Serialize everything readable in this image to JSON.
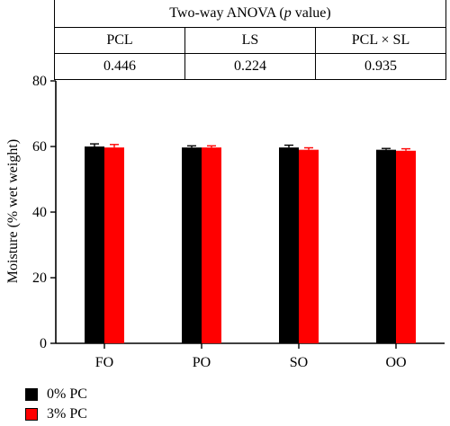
{
  "stats_table": {
    "title_prefix": "Two-way ANOVA (",
    "title_italic": "p",
    "title_suffix": " value)",
    "headers": [
      "PCL",
      "LS",
      "PCL × SL"
    ],
    "values": [
      "0.446",
      "0.224",
      "0.935"
    ]
  },
  "chart_data": {
    "type": "bar",
    "categories": [
      "FO",
      "PO",
      "SO",
      "OO"
    ],
    "ylabel": "Moisture (% wet weight)",
    "ylim": [
      0,
      80
    ],
    "yticks": [
      0,
      20,
      40,
      60,
      80
    ],
    "series": [
      {
        "name": "0% PC",
        "color": "#000000",
        "values": [
          60.0,
          59.7,
          59.7,
          59.0
        ],
        "errors": [
          0.8,
          0.5,
          0.7,
          0.4
        ]
      },
      {
        "name": "3% PC",
        "color": "#ff0000",
        "values": [
          59.7,
          59.7,
          59.0,
          58.7
        ],
        "errors": [
          0.9,
          0.5,
          0.6,
          0.6
        ]
      }
    ],
    "legend_position": "bottom-left"
  }
}
